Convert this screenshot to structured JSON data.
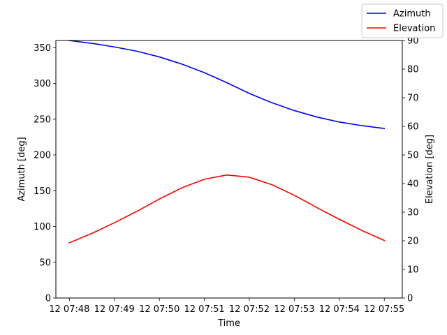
{
  "chart_data": {
    "type": "line",
    "xlabel": "Time",
    "ylabel_left": "Azimuth [deg]",
    "ylabel_right": "Elevation [deg]",
    "x_tick_labels": [
      "12 07:48",
      "12 07:49",
      "12 07:50",
      "12 07:51",
      "12 07:52",
      "12 07:53",
      "12 07:54",
      "12 07:55"
    ],
    "x_tick_minutes": [
      48,
      49,
      50,
      51,
      52,
      53,
      54,
      55
    ],
    "xlim_minutes": [
      47.7,
      55.4
    ],
    "ylim_left": [
      0,
      360
    ],
    "yticks_left": [
      0,
      50,
      100,
      150,
      200,
      250,
      300,
      350
    ],
    "ylim_right": [
      0,
      90
    ],
    "yticks_right": [
      0,
      10,
      20,
      30,
      40,
      50,
      60,
      70,
      80,
      90
    ],
    "grid": false,
    "legend_position": "top-right (outside)",
    "series": [
      {
        "name": "Azimuth",
        "axis": "left",
        "color": "#0000ff",
        "x_minutes": [
          48.0,
          48.5,
          49.0,
          49.5,
          50.0,
          50.5,
          51.0,
          51.5,
          52.0,
          52.5,
          53.0,
          53.5,
          54.0,
          54.5,
          55.0
        ],
        "values": [
          360,
          356,
          351,
          345,
          337,
          327,
          315,
          301,
          286,
          273,
          262,
          253,
          246,
          241,
          237
        ]
      },
      {
        "name": "Elevation",
        "axis": "right",
        "color": "#ff0000",
        "x_minutes": [
          48.0,
          48.5,
          49.0,
          49.5,
          50.0,
          50.5,
          51.0,
          51.5,
          52.0,
          52.5,
          53.0,
          53.5,
          54.0,
          54.5,
          55.0
        ],
        "values": [
          19.3,
          22.6,
          26.3,
          30.3,
          34.6,
          38.5,
          41.5,
          43.0,
          42.2,
          39.6,
          35.9,
          31.6,
          27.5,
          23.6,
          20.1
        ]
      }
    ]
  }
}
